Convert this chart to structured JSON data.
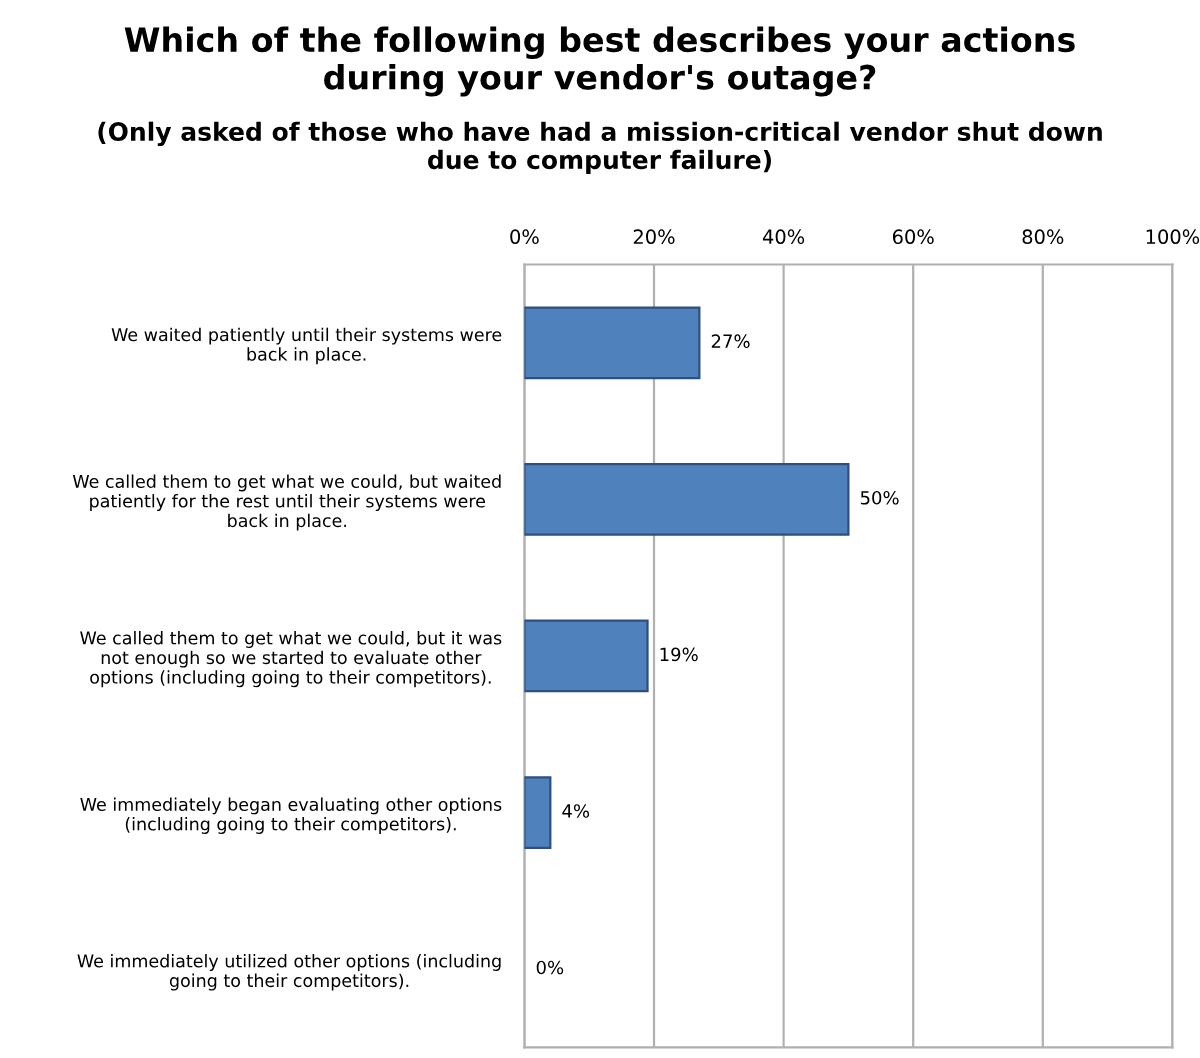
{
  "chart_data": {
    "type": "bar",
    "orientation": "horizontal",
    "title": "Which of the following best describes your actions during your vendor's outage?",
    "subtitle": "(Only asked of those who have had a mission-critical vendor shut down due to computer failure)",
    "categories": [
      "We waited patiently until their systems were back in place.",
      "We called them to get what we could, but waited patiently for the rest until their systems were back in place.",
      "We called them to get what we could, but it was not enough so we started to evaluate other options (including going to their competitors).",
      "We immediately began evaluating other options (including going to their competitors).",
      "We immediately utilized other options (including going to their competitors)."
    ],
    "values": [
      27,
      50,
      19,
      4,
      0
    ],
    "value_labels": [
      "27%",
      "50%",
      "19%",
      "4%",
      "0%"
    ],
    "color": "#4f81bd",
    "xlim": [
      0,
      100
    ],
    "xticks": [
      {
        "value": 0,
        "label": "0%"
      },
      {
        "value": 20,
        "label": "20%"
      },
      {
        "value": 40,
        "label": "40%"
      },
      {
        "value": 60,
        "label": "60%"
      },
      {
        "value": 80,
        "label": "80%"
      },
      {
        "value": 100,
        "label": "100%"
      }
    ],
    "grid": "x"
  }
}
